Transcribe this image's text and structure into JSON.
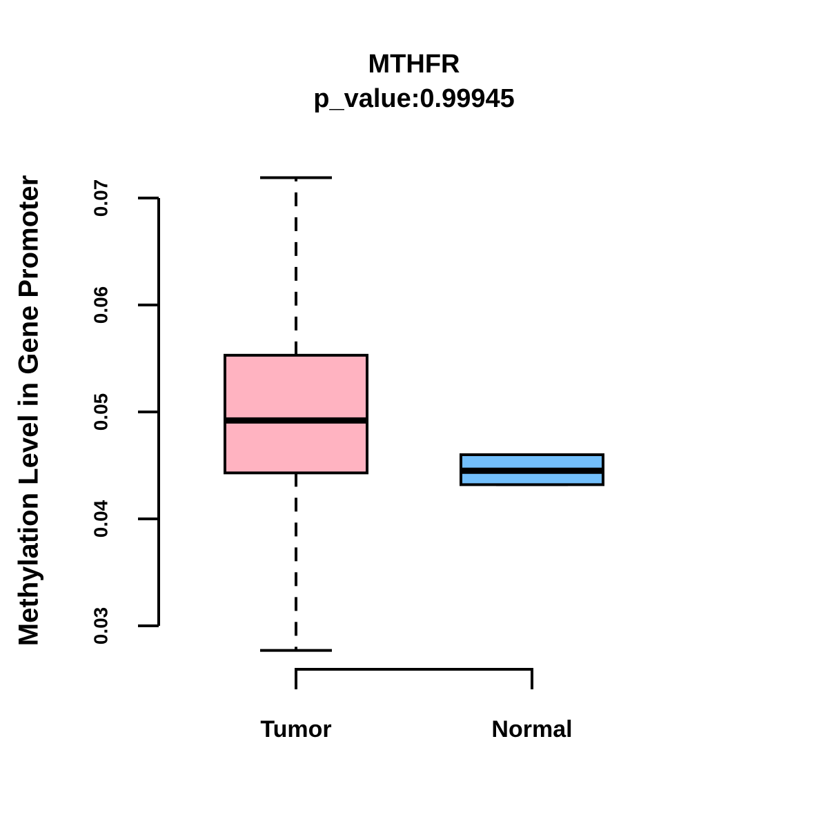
{
  "title": "MTHFR",
  "subtitle": "p_value:0.99945",
  "y_axis_label": "Methylation Level in Gene Promoter",
  "colors": {
    "tumor_fill": "#FFB3C1",
    "normal_fill": "#73BFFB",
    "line": "#000000",
    "background": "#FFFFFF"
  },
  "chart_data": {
    "type": "boxplot",
    "title": "MTHFR",
    "subtitle": "p_value:0.99945",
    "ylabel": "Methylation Level in Gene Promoter",
    "xlabel": "",
    "categories": [
      "Tumor",
      "Normal"
    ],
    "y_ticks": [
      0.03,
      0.04,
      0.05,
      0.06,
      0.07
    ],
    "y_tick_labels": [
      "0.03",
      "0.04",
      "0.05",
      "0.06",
      "0.07"
    ],
    "ylim": [
      0.0277,
      0.0719
    ],
    "grid": false,
    "legend": "none",
    "series": [
      {
        "name": "Tumor",
        "fill": "#FFB3C1",
        "whisker_low": 0.0277,
        "q1": 0.0443,
        "median": 0.0492,
        "q3": 0.0553,
        "whisker_high": 0.0719,
        "has_whiskers": true
      },
      {
        "name": "Normal",
        "fill": "#73BFFB",
        "whisker_low": 0.0432,
        "q1": 0.0432,
        "median": 0.0445,
        "q3": 0.046,
        "whisker_high": 0.046,
        "has_whiskers": false
      }
    ]
  }
}
